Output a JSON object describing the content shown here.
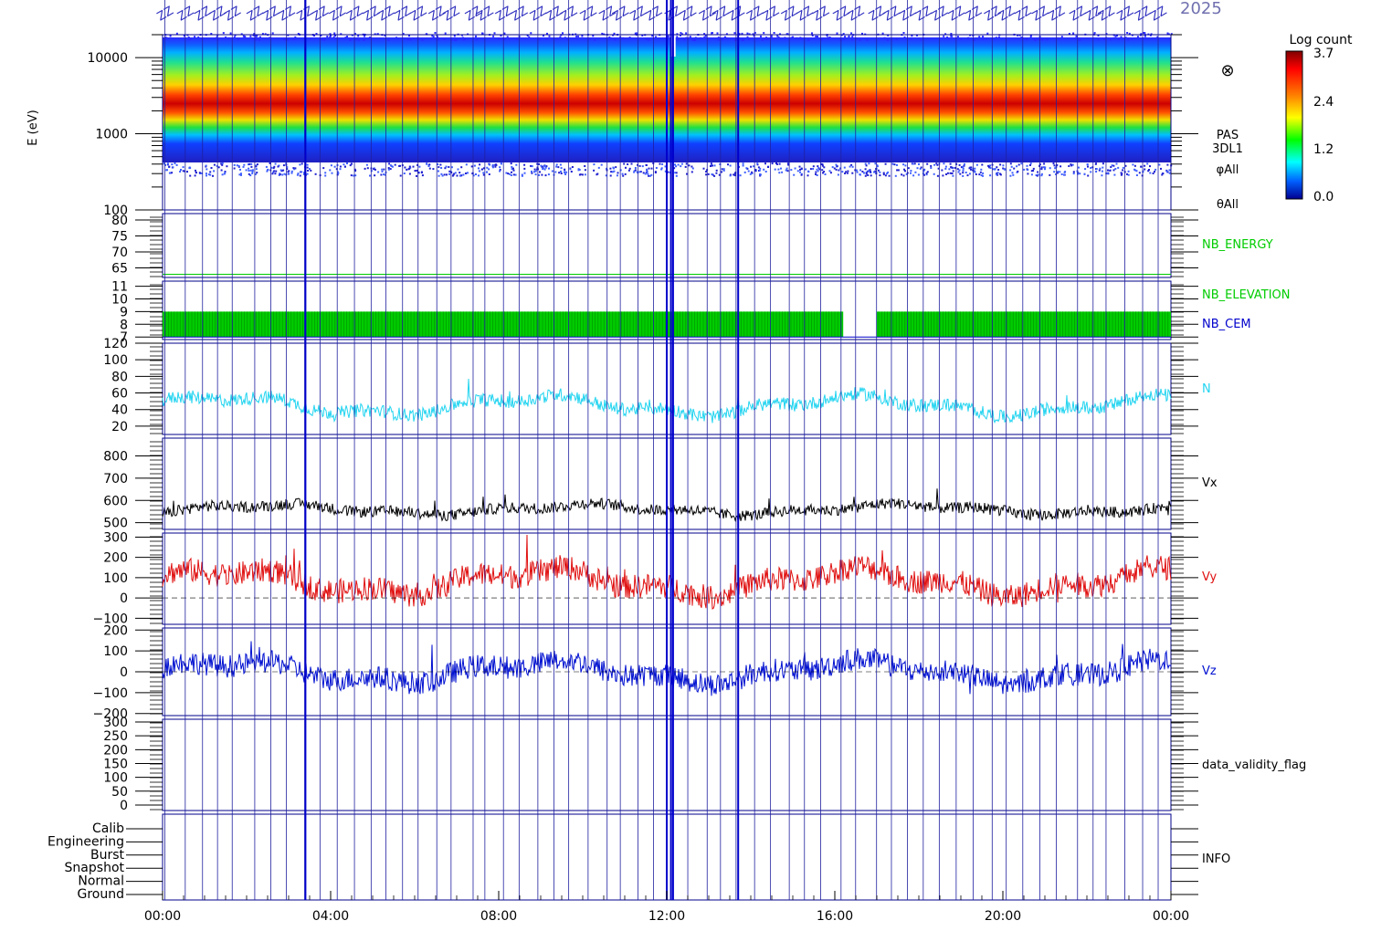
{
  "header": {
    "date_text": "2025"
  },
  "colorbar": {
    "title": "Log count",
    "ticks": [
      "3.7",
      "2.4",
      "1.2",
      "0.0"
    ]
  },
  "panel_labels": {
    "spectrogram": [
      "PAS",
      "3DL1",
      "φAll",
      "θAll"
    ],
    "spectrogram_symbol": "⊗",
    "nb_energy": "NB_ENERGY",
    "nb_elevation": "NB_ELEVATION",
    "nb_cem": "NB_CEM",
    "n": "N",
    "vx": "Vx",
    "vy": "Vy",
    "vz": "Vz",
    "validity": "data_validity_flag",
    "info": "INFO"
  },
  "colors": {
    "nb_energy": "#00cc00",
    "nb_elevation": "#00cc00",
    "nb_cem": "#0000cc",
    "n": "#22d4f0",
    "vx": "#000000",
    "vy": "#e01010",
    "vz": "#0010d0",
    "frame": "#00008b"
  },
  "chart_data": {
    "type": "line",
    "x_ticks": [
      "00:00",
      "04:00",
      "08:00",
      "12:00",
      "16:00",
      "20:00",
      "00:00"
    ],
    "x_range_hours": [
      0,
      24
    ],
    "panels": [
      {
        "id": "spectrogram",
        "type": "heatmap",
        "ylabel": "E (eV)",
        "ticks": [
          "10000",
          "1000",
          "100"
        ],
        "scale": "log",
        "ylim": [
          100,
          20000
        ],
        "peak_energy_ev": 1700,
        "colorbar_range": [
          0.0,
          3.7
        ]
      },
      {
        "id": "nb_energy",
        "ticks": [
          "80",
          "75",
          "70",
          "65"
        ],
        "ylim": [
          62,
          82
        ],
        "value": 63
      },
      {
        "id": "nb_elevation",
        "ticks": [
          "11",
          "10",
          "9",
          "8",
          "7"
        ],
        "ylim": [
          6.8,
          11.4
        ],
        "band": [
          7,
          9
        ],
        "gap_hours": [
          16.2,
          17.0
        ]
      },
      {
        "id": "n",
        "ticks": [
          "120",
          "100",
          "80",
          "60",
          "40",
          "20"
        ],
        "ylim": [
          10,
          120
        ],
        "baseline": 45,
        "noise": 8
      },
      {
        "id": "vx",
        "ticks": [
          "800",
          "700",
          "600",
          "500"
        ],
        "ylim": [
          470,
          880
        ],
        "baseline": 560,
        "noise": 25
      },
      {
        "id": "vy",
        "ticks": [
          "300",
          "200",
          "100",
          "0",
          "−100"
        ],
        "ylim": [
          -130,
          320
        ],
        "baseline": 80,
        "noise": 60
      },
      {
        "id": "vz",
        "ticks": [
          "200",
          "100",
          "0",
          "−100",
          "−200"
        ],
        "ylim": [
          -210,
          210
        ],
        "baseline": 0,
        "noise": 55
      },
      {
        "id": "validity",
        "ticks": [
          "300",
          "250",
          "200",
          "150",
          "100",
          "50",
          "0"
        ],
        "ylim": [
          -20,
          310
        ]
      },
      {
        "id": "info",
        "ticks": [
          "Calib",
          "Engineering",
          "Burst",
          "Snapshot",
          "Normal",
          "Ground"
        ]
      }
    ]
  }
}
